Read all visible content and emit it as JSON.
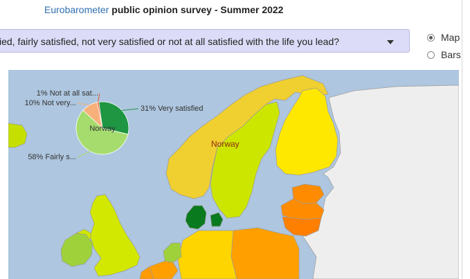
{
  "header": {
    "brand": "Eurobarometer",
    "title": "public opinion survey - Summer 2022"
  },
  "question": {
    "selected": "ied, fairly satisfied, not very satisfied or not at all satisfied with the life you lead?"
  },
  "view_options": [
    {
      "label": "Map",
      "selected": true
    },
    {
      "label": "Bars",
      "selected": false
    }
  ],
  "map": {
    "hover_label": "Norway",
    "colors": {
      "sea": "#aec6df",
      "non_eu": "#eeeeee",
      "border": "#9a9a9a"
    }
  },
  "chart_data": {
    "type": "pie",
    "title": "Norway",
    "categories": [
      "Very satisfied",
      "Fairly satisfied",
      "Not very satisfied",
      "Not at all satisfied"
    ],
    "values": [
      31,
      58,
      10,
      1
    ],
    "labels": [
      "31% Very satisfied",
      "58% Fairly s...",
      "10% Not very...",
      "1% Not at all sat..."
    ],
    "colors": [
      "#1e9642",
      "#a6dc6e",
      "#f8b07a",
      "#e05a2a"
    ]
  }
}
